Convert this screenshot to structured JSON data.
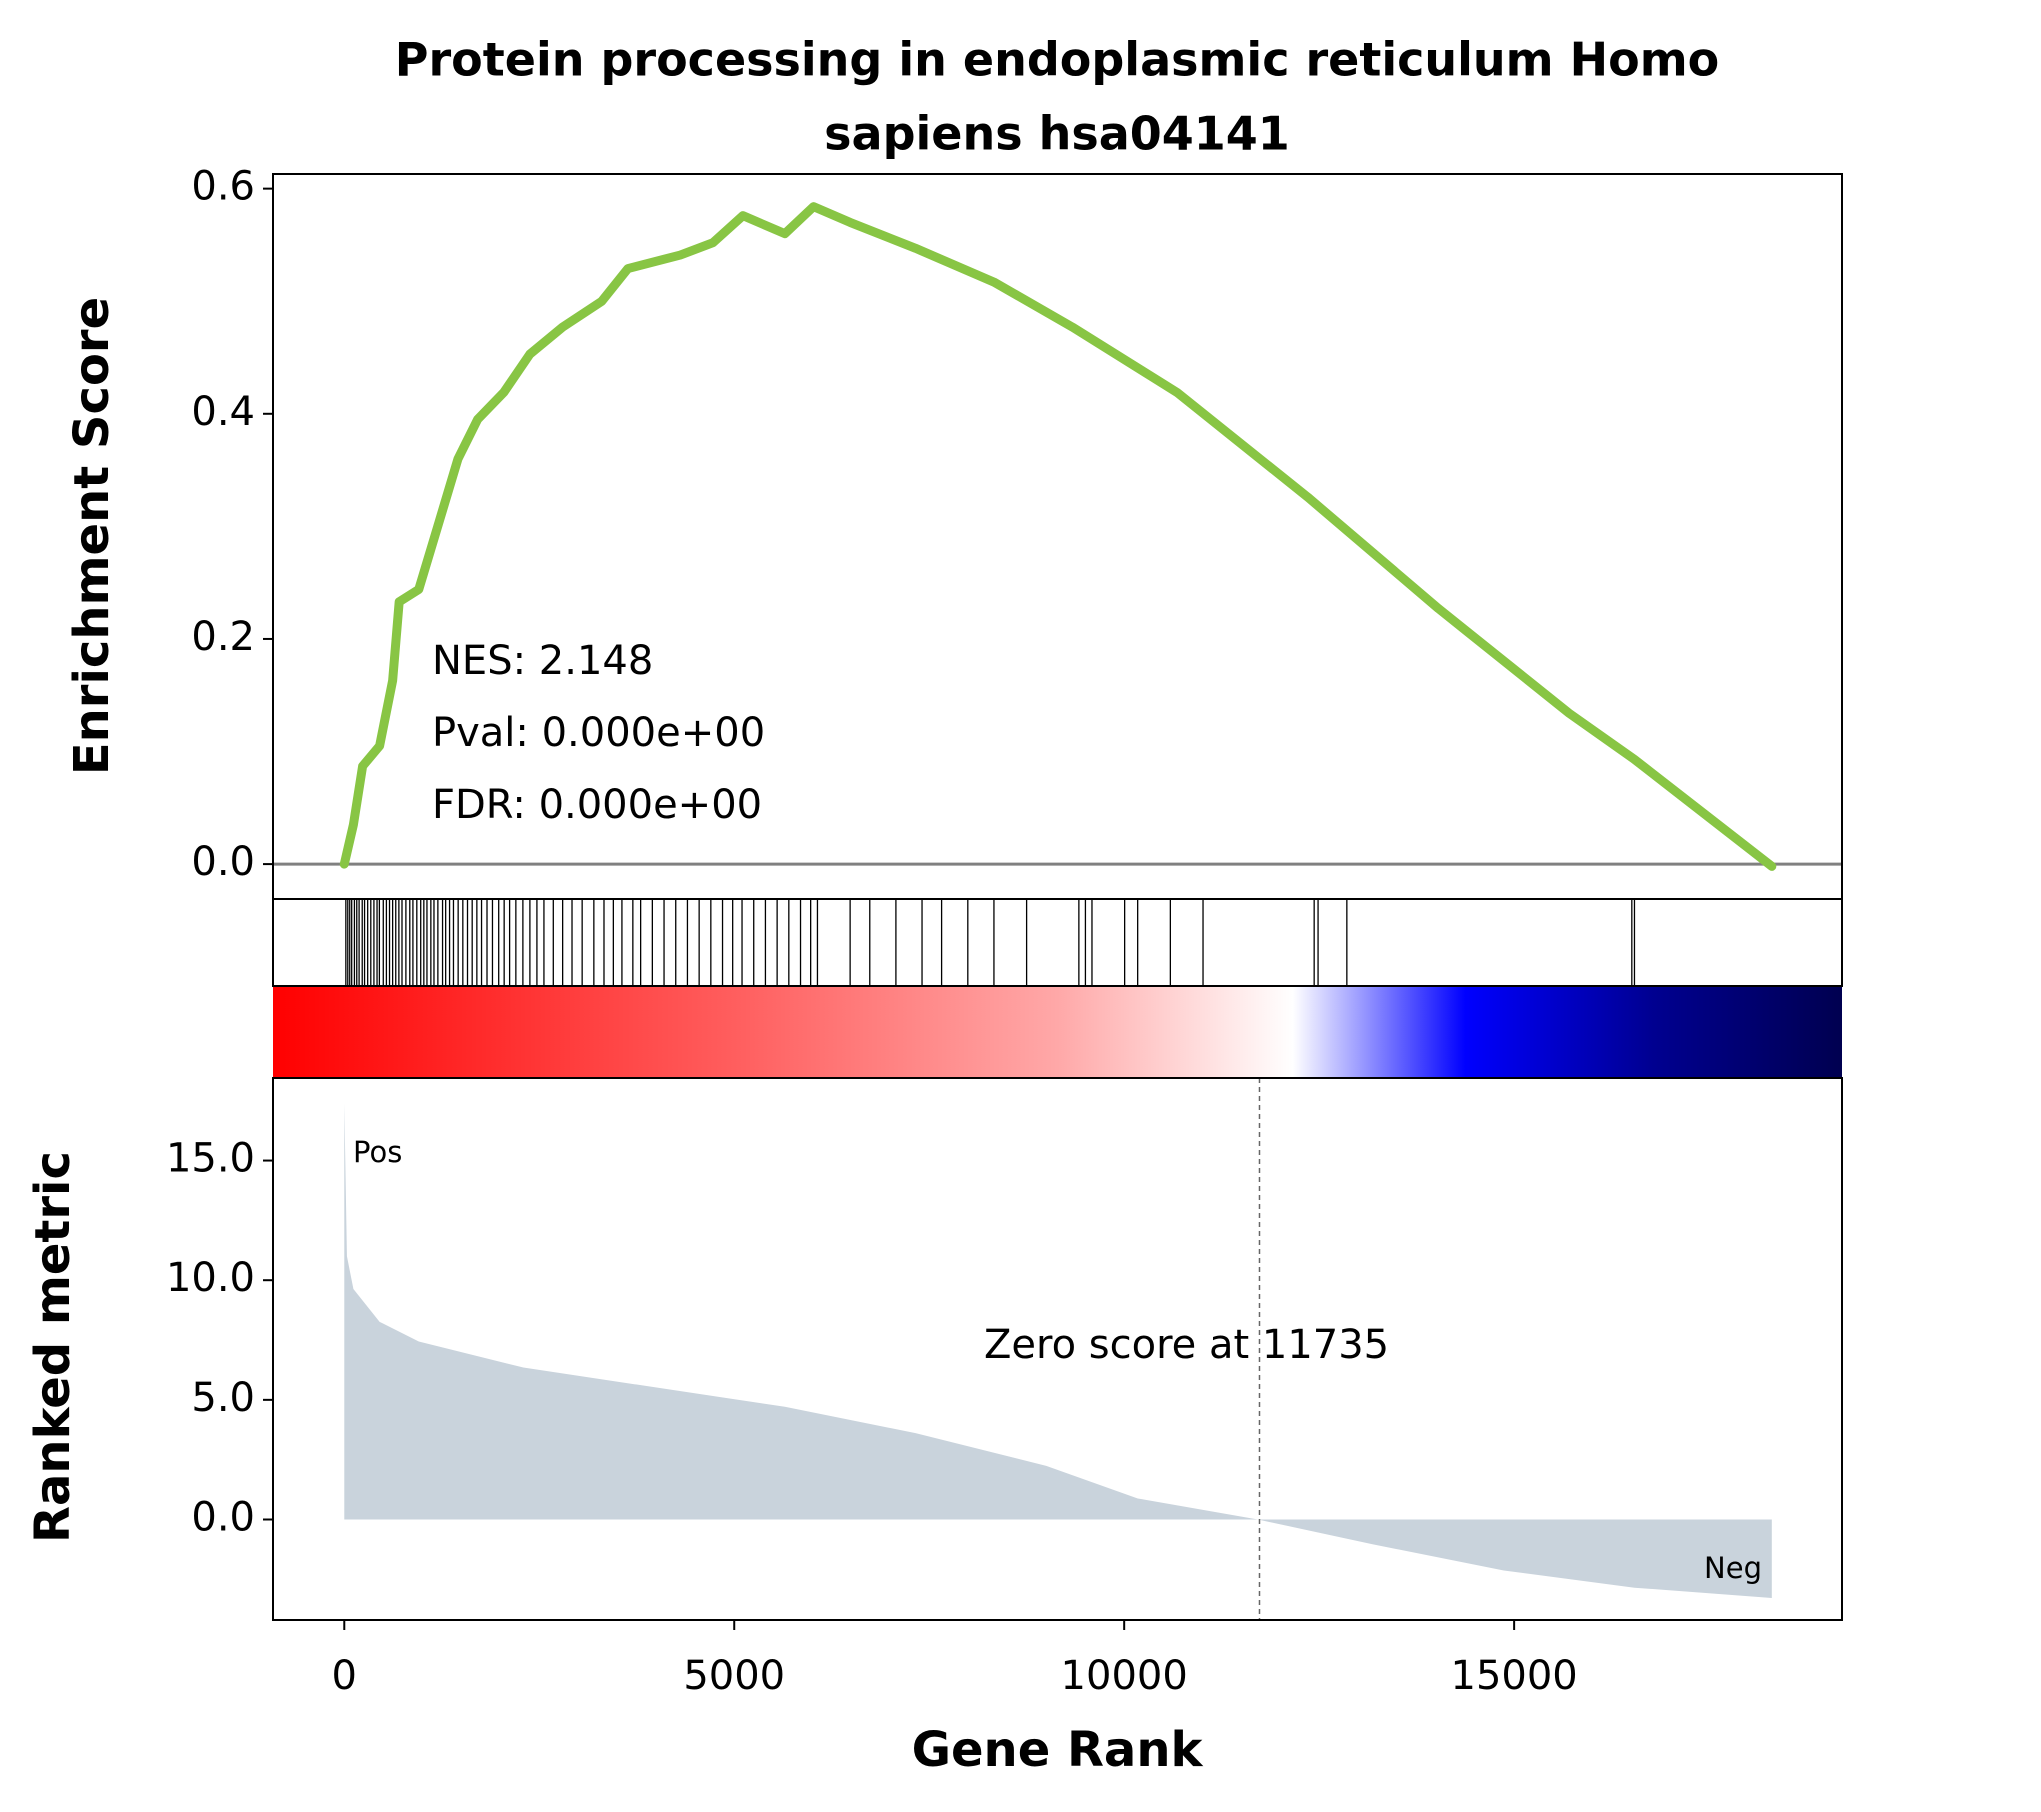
{
  "chart_data": {
    "type": "gsea",
    "title": [
      "Protein processing in endoplasmic reticulum Homo",
      "sapiens hsa04141"
    ],
    "es_label": "Enrichment Score",
    "metric_label": "Ranked metric",
    "x_label": "Gene Rank",
    "annotations": [
      "NES: 2.148",
      "Pval: 0.000e+00",
      "FDR: 0.000e+00"
    ],
    "pos_label": "Pos",
    "neg_label": "Neg",
    "zero_score_label": "Zero score at 11735",
    "zero_score_rank": 11735,
    "es_color": "#88c544",
    "metric_color": "#c9d3dc",
    "xlim": [
      -914,
      19204
    ],
    "xticks": [
      0,
      5000,
      10000,
      15000
    ],
    "es_ylim": [
      -0.031,
      0.613
    ],
    "es_yticks": [
      {
        "value": 0,
        "label": "0.0"
      },
      0.2,
      0.4,
      0.6
    ],
    "metric_ylim": [
      -4.2,
      18.45
    ],
    "metric_yticks": [
      {
        "value": 0,
        "label": "0.0"
      },
      {
        "value": 5,
        "label": "5.0"
      },
      {
        "value": 10,
        "label": "10.0"
      },
      {
        "value": 15,
        "label": "15.0"
      }
    ],
    "es_x": [
      0,
      117,
      235,
      453,
      620,
      704,
      955,
      1207,
      1458,
      1710,
      2045,
      2380,
      2799,
      3302,
      3637,
      4308,
      4727,
      5112,
      5649,
      6017,
      6486,
      7325,
      8330,
      9336,
      10677,
      12353,
      14029,
      15705,
      16543,
      18304
    ],
    "es_values": [
      0,
      0.035,
      0.087,
      0.105,
      0.163,
      0.233,
      0.244,
      0.302,
      0.36,
      0.395,
      0.419,
      0.453,
      0.477,
      0.5,
      0.529,
      0.541,
      0.552,
      0.576,
      0.56,
      0.584,
      0.57,
      0.547,
      0.517,
      0.477,
      0.419,
      0.326,
      0.227,
      0.134,
      0.093,
      -0.002
    ],
    "hits": [
      20,
      45,
      70,
      95,
      130,
      160,
      190,
      230,
      260,
      300,
      340,
      380,
      420,
      450,
      500,
      540,
      580,
      620,
      660,
      700,
      740,
      790,
      840,
      880,
      930,
      980,
      1020,
      1060,
      1110,
      1150,
      1200,
      1260,
      1300,
      1350,
      1400,
      1460,
      1520,
      1580,
      1640,
      1700,
      1760,
      1830,
      1900,
      1980,
      2050,
      2120,
      2200,
      2290,
      2380,
      2470,
      2560,
      2680,
      2800,
      2920,
      3050,
      3200,
      3330,
      3450,
      3560,
      3700,
      3800,
      3950,
      4100,
      4250,
      4400,
      4550,
      4700,
      4850,
      4980,
      5100,
      5250,
      5400,
      5550,
      5700,
      5850,
      5980,
      6067,
      6486,
      6738,
      7073,
      7408,
      7659,
      7995,
      8330,
      8749,
      9419,
      9503,
      9587,
      10006,
      10173,
      10592,
      11011,
      12436,
      12486,
      12855,
      16509,
      16543
    ],
    "metric_x": [
      0,
      34,
      117,
      453,
      955,
      2296,
      3972,
      5649,
      7325,
      9001,
      10174,
      11715,
      13191,
      14867,
      16543,
      18304
    ],
    "metric_values": [
      17.4,
      11.0,
      9.63,
      8.26,
      7.44,
      6.35,
      5.53,
      4.71,
      3.61,
      2.24,
      0.88,
      0,
      -1.04,
      -2.13,
      -2.85,
      -3.28
    ]
  }
}
